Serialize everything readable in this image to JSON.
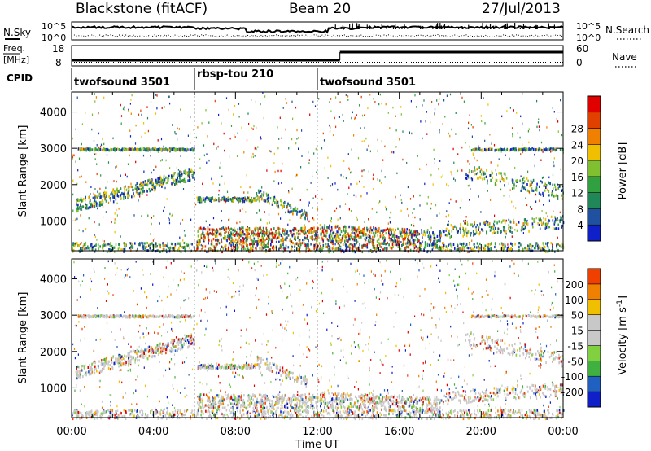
{
  "header": {
    "station": "Blackstone (fitACF)",
    "beam": "Beam 20",
    "date": "27/Jul/2013"
  },
  "noise_panel": {
    "left_label": "N.Sky",
    "right_label": "N.Search",
    "tick_top": "10^5",
    "tick_bottom": "10^0"
  },
  "freq_panel": {
    "left_label_line1": "Freq.",
    "left_label_line2": "[MHz]",
    "left_tick_top": "18",
    "left_tick_bottom": "8",
    "right_label": "Nave",
    "right_tick_top": "60",
    "right_tick_bottom": "0"
  },
  "cpid": {
    "label": "CPID",
    "segments": [
      {
        "name": "twofsound 3501",
        "start_hour": 0,
        "end_hour": 6.0
      },
      {
        "name": "rbsp-tou 210",
        "start_hour": 6.0,
        "end_hour": 12.0
      },
      {
        "name": "twofsound 3501",
        "start_hour": 12.0,
        "end_hour": 24.0
      }
    ]
  },
  "colors": {
    "power": [
      "#1020c8",
      "#2050a0",
      "#208858",
      "#30a040",
      "#80c030",
      "#f0c000",
      "#f08000",
      "#e04000",
      "#e00000"
    ],
    "velocity": [
      "#e00000",
      "#f04000",
      "#f08000",
      "#f0c000",
      "#c8c8c8",
      "#c8c8c8",
      "#80d040",
      "#40b040",
      "#2060c0",
      "#1020c8"
    ]
  },
  "chart_data": [
    {
      "type": "heatmap",
      "title": "Power",
      "xlabel": "",
      "ylabel": "Slant Range [km]",
      "xlim": [
        0,
        24
      ],
      "ylim": [
        180,
        4550
      ],
      "yticks": [
        "1000",
        "2000",
        "3000",
        "4000"
      ],
      "ytick_values": [
        1000,
        2000,
        3000,
        4000
      ],
      "colorbar": {
        "label": "Power [dB]",
        "range": [
          0,
          30
        ],
        "ticks": [
          "4",
          "8",
          "12",
          "16",
          "20",
          "24",
          "28"
        ],
        "tick_values": [
          4,
          8,
          12,
          16,
          20,
          24,
          28
        ]
      }
    },
    {
      "type": "heatmap",
      "title": "Velocity",
      "xlabel": "Time UT",
      "ylabel": "Slant Range [km]",
      "xlim": [
        0,
        24
      ],
      "ylim": [
        180,
        4550
      ],
      "xticks": [
        "00:00",
        "04:00",
        "08:00",
        "12:00",
        "16:00",
        "20:00",
        "00:00"
      ],
      "xtick_values": [
        0,
        4,
        8,
        12,
        16,
        20,
        24
      ],
      "yticks": [
        "1000",
        "2000",
        "3000",
        "4000"
      ],
      "ytick_values": [
        1000,
        2000,
        3000,
        4000
      ],
      "colorbar": {
        "label_main": "Velocity [m s",
        "label_sup": "-1",
        "label_end": "]",
        "ticks": [
          "200",
          "100",
          "50",
          "15",
          "-15",
          "-50",
          "-100",
          "-200"
        ]
      }
    }
  ]
}
